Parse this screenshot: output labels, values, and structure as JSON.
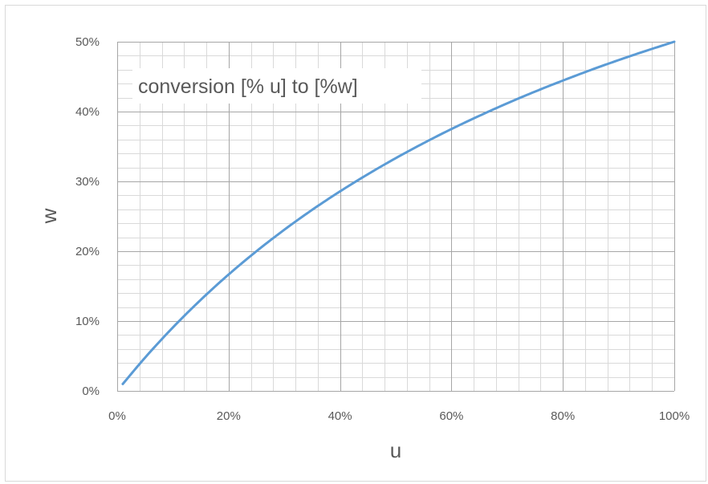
{
  "chart_data": {
    "type": "line",
    "title": "conversion [% u] to [%w]",
    "xlabel": "u",
    "ylabel": "w",
    "xlim": [
      0,
      100
    ],
    "ylim": [
      0,
      50
    ],
    "x_ticks": [
      "0%",
      "20%",
      "40%",
      "60%",
      "80%",
      "100%"
    ],
    "y_ticks": [
      "0%",
      "10%",
      "20%",
      "30%",
      "40%",
      "50%"
    ],
    "grid": true,
    "legend": "none",
    "colors": {
      "line": "#5b9bd5",
      "grid_major": "#a6a6a6",
      "grid_minor": "#d9d9d9",
      "text": "#595959"
    },
    "series": [
      {
        "x": [
          1,
          5,
          10,
          15,
          20,
          25,
          30,
          35,
          40,
          45,
          50,
          55,
          60,
          65,
          70,
          75,
          80,
          85,
          90,
          95,
          100
        ],
        "y": [
          0.99,
          4.76,
          9.09,
          13.04,
          16.67,
          20.0,
          23.08,
          25.93,
          28.57,
          31.03,
          33.33,
          35.48,
          37.5,
          39.39,
          41.18,
          42.86,
          44.44,
          45.95,
          47.37,
          48.72,
          50.0
        ]
      }
    ]
  }
}
